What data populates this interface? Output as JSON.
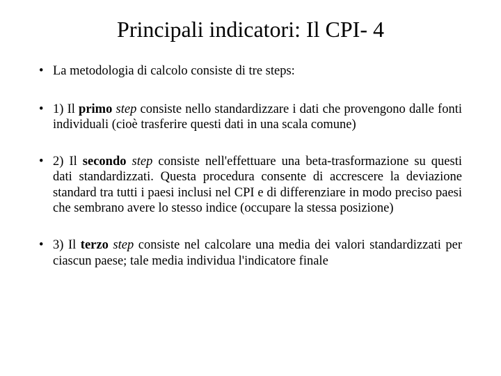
{
  "title": "Principali indicatori: Il CPI- 4",
  "intro": "La metodologia di calcolo consiste di tre steps:",
  "steps": [
    {
      "num": "1) Il ",
      "ordinal": "primo ",
      "word": "step",
      "rest": " consiste nello standardizzare i dati che provengono dalle fonti individuali (cioè trasferire questi dati in una scala comune)"
    },
    {
      "num": "2) Il ",
      "ordinal": "secondo ",
      "word": "step",
      "rest": " consiste nell'effettuare una beta-trasformazione su questi dati standardizzati. Questa procedura consente di accrescere la deviazione standard tra tutti i paesi inclusi nel CPI e di differenziare in modo preciso paesi che sembrano avere lo stesso indice  (occupare la stessa posizione)"
    },
    {
      "num": "3) Il ",
      "ordinal": "terzo ",
      "word": "step",
      "rest": " consiste nel calcolare una media dei valori standardizzati per ciascun paese; tale media individua l'indicatore finale"
    }
  ],
  "colors": {
    "background": "#ffffff",
    "text": "#000000"
  },
  "typography": {
    "title_fontsize": 32,
    "body_fontsize": 18.5,
    "font_family": "Times New Roman"
  }
}
